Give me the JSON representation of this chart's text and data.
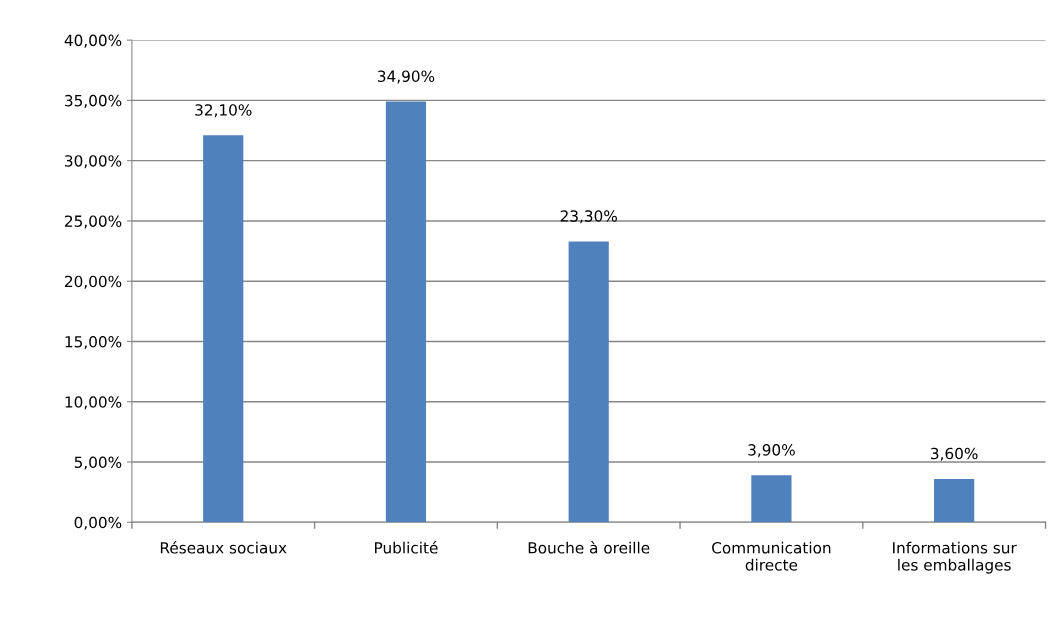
{
  "chart_data": {
    "type": "bar",
    "categories": [
      "Réseaux sociaux",
      "Publicité",
      "Bouche à oreille",
      "Communication\ndirecte",
      "Informations sur\nles emballages"
    ],
    "values": [
      32.1,
      34.9,
      23.3,
      3.9,
      3.6
    ],
    "value_labels": [
      "32,10%",
      "34,90%",
      "23,30%",
      "3,90%",
      "3,60%"
    ],
    "color": "#4f81bd",
    "ylim": [
      0,
      40
    ],
    "yticks": [
      {
        "value": 0,
        "label": "0,00%"
      },
      {
        "value": 5,
        "label": "5,00%"
      },
      {
        "value": 10,
        "label": "10,00%"
      },
      {
        "value": 15,
        "label": "15,00%"
      },
      {
        "value": 20,
        "label": "20,00%"
      },
      {
        "value": 25,
        "label": "25,00%"
      },
      {
        "value": 30,
        "label": "30,00%"
      },
      {
        "value": 35,
        "label": "35,00%"
      },
      {
        "value": 40,
        "label": "40,00%"
      }
    ],
    "grid": "y",
    "legend": false
  }
}
